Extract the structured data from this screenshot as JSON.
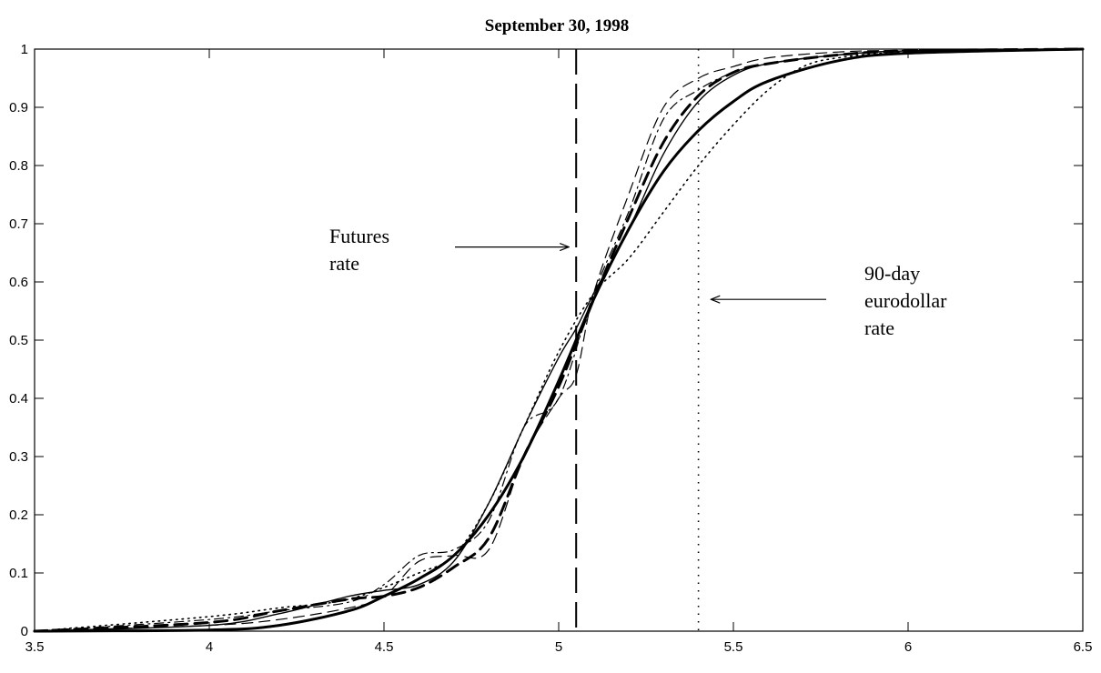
{
  "chart_data": {
    "type": "line",
    "title": "September 30, 1998",
    "xlabel": "",
    "ylabel": "",
    "xlim": [
      3.5,
      6.5
    ],
    "ylim": [
      0,
      1
    ],
    "grid": false,
    "x_ticks": [
      3.5,
      4,
      4.5,
      5,
      5.5,
      6,
      6.5
    ],
    "x_tick_labels": [
      "3.5",
      "4",
      "4.5",
      "5",
      "5.5",
      "6",
      "6.5"
    ],
    "y_ticks": [
      0,
      0.1,
      0.2,
      0.3,
      0.4,
      0.5,
      0.6,
      0.7,
      0.8,
      0.9,
      1
    ],
    "y_tick_labels": [
      "0",
      "0.1",
      "0.2",
      "0.3",
      "0.4",
      "0.5",
      "0.6",
      "0.7",
      "0.8",
      "0.9",
      "1"
    ],
    "series": [
      {
        "style": "thick-solid",
        "x": [
          3.5,
          4.0,
          4.2,
          4.4,
          4.5,
          4.6,
          4.7,
          4.8,
          4.9,
          5.0,
          5.1,
          5.2,
          5.3,
          5.4,
          5.5,
          5.6,
          5.8,
          6.0,
          6.5
        ],
        "y": [
          0.0,
          0.002,
          0.01,
          0.035,
          0.06,
          0.09,
          0.13,
          0.2,
          0.3,
          0.43,
          0.57,
          0.69,
          0.79,
          0.86,
          0.91,
          0.945,
          0.98,
          0.993,
          1.0
        ]
      },
      {
        "style": "thin-solid",
        "x": [
          3.5,
          4.0,
          4.2,
          4.4,
          4.5,
          4.6,
          4.7,
          4.8,
          4.9,
          5.0,
          5.05,
          5.1,
          5.2,
          5.3,
          5.4,
          5.5,
          5.6,
          5.8,
          6.0,
          6.5
        ],
        "y": [
          0.0,
          0.01,
          0.03,
          0.06,
          0.07,
          0.08,
          0.12,
          0.22,
          0.35,
          0.47,
          0.52,
          0.58,
          0.69,
          0.82,
          0.91,
          0.955,
          0.975,
          0.99,
          0.997,
          1.0
        ]
      },
      {
        "style": "thick-dashed",
        "x": [
          3.5,
          4.0,
          4.2,
          4.4,
          4.5,
          4.6,
          4.7,
          4.8,
          4.9,
          5.0,
          5.1,
          5.2,
          5.3,
          5.4,
          5.5,
          5.6,
          5.8,
          6.0,
          6.5
        ],
        "y": [
          0.0,
          0.015,
          0.035,
          0.055,
          0.06,
          0.075,
          0.11,
          0.16,
          0.3,
          0.42,
          0.57,
          0.71,
          0.84,
          0.92,
          0.96,
          0.975,
          0.99,
          0.997,
          1.0
        ]
      },
      {
        "style": "thin-dashed",
        "x": [
          3.5,
          4.0,
          4.2,
          4.4,
          4.5,
          4.6,
          4.7,
          4.8,
          4.9,
          5.0,
          5.05,
          5.1,
          5.2,
          5.3,
          5.4,
          5.5,
          5.6,
          5.8,
          6.0,
          6.5
        ],
        "y": [
          0.0,
          0.01,
          0.02,
          0.04,
          0.06,
          0.12,
          0.13,
          0.14,
          0.3,
          0.4,
          0.44,
          0.58,
          0.75,
          0.9,
          0.95,
          0.97,
          0.985,
          0.995,
          0.998,
          1.0
        ]
      },
      {
        "style": "dash-dot",
        "x": [
          3.5,
          4.0,
          4.2,
          4.4,
          4.5,
          4.6,
          4.7,
          4.8,
          4.9,
          5.0,
          5.1,
          5.2,
          5.3,
          5.4,
          5.5,
          5.6,
          5.8,
          6.0,
          6.5
        ],
        "y": [
          0.0,
          0.02,
          0.035,
          0.05,
          0.08,
          0.13,
          0.14,
          0.19,
          0.35,
          0.4,
          0.58,
          0.72,
          0.88,
          0.93,
          0.96,
          0.975,
          0.99,
          0.997,
          1.0
        ]
      },
      {
        "style": "dotted",
        "x": [
          3.5,
          4.0,
          4.2,
          4.4,
          4.6,
          4.7,
          4.8,
          4.9,
          5.0,
          5.1,
          5.2,
          5.3,
          5.4,
          5.5,
          5.6,
          5.7,
          5.8,
          6.0,
          6.5
        ],
        "y": [
          0.0,
          0.025,
          0.04,
          0.055,
          0.1,
          0.13,
          0.22,
          0.35,
          0.48,
          0.58,
          0.64,
          0.72,
          0.8,
          0.87,
          0.93,
          0.97,
          0.985,
          0.995,
          1.0
        ]
      }
    ],
    "vertical_lines": [
      {
        "x": 5.05,
        "style": "long-dashed"
      },
      {
        "x": 5.4,
        "style": "dotted"
      }
    ],
    "annotations": [
      {
        "lines": [
          "Futures",
          "rate"
        ],
        "text_at": [
          4.83,
          0.66
        ],
        "arrow_to": [
          5.05,
          0.66
        ]
      },
      {
        "lines": [
          "90-day",
          "eurodollar",
          "rate"
        ],
        "text_at": [
          5.72,
          0.57
        ],
        "arrow_to": [
          5.42,
          0.57
        ]
      }
    ]
  }
}
